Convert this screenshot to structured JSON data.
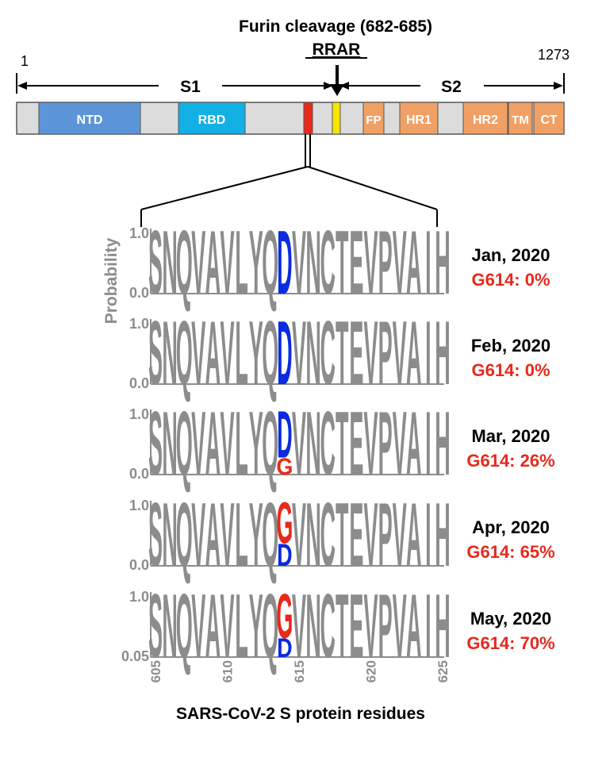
{
  "header": {
    "title": "Furin cleavage (682-685)",
    "motif": "RRAR",
    "start": "1",
    "end": "1273"
  },
  "protein_map": {
    "s1_label": "S1",
    "s2_label": "S2",
    "domains": [
      {
        "label": "NTD",
        "color": "#5b95d8"
      },
      {
        "label": "RBD",
        "color": "#13b0e6"
      },
      {
        "label": "FP",
        "color": "#f0a065"
      },
      {
        "label": "HR1",
        "color": "#f0a065"
      },
      {
        "label": "HR2",
        "color": "#f0a065"
      },
      {
        "label": "TM",
        "color": "#f0a065"
      },
      {
        "label": "CT",
        "color": "#f0a065"
      }
    ],
    "markers": [
      {
        "name": "D614 site",
        "color": "#e8291c"
      },
      {
        "name": "Furin site",
        "color": "#f5e500"
      }
    ]
  },
  "logo": {
    "y_axis_label": "Probability",
    "x_axis_label": "SARS-CoV-2 S protein residues",
    "residues": [
      "S",
      "N",
      "Q",
      "V",
      "A",
      "V",
      "L",
      "Y",
      "Q",
      "D",
      "V",
      "N",
      "C",
      "T",
      "E",
      "V",
      "P",
      "V",
      "A",
      "I",
      "H"
    ],
    "x_ticks": [
      "605",
      "610",
      "615",
      "620",
      "625"
    ],
    "colors": {
      "D": "#0a2be0",
      "G": "#e8291c",
      "other": "#8c8c8c"
    },
    "panels": [
      {
        "month": "Jan, 2020",
        "g614": "G614: 0%",
        "g_fraction": 0.0,
        "y_top": "1.0",
        "y_bottom": "0.0"
      },
      {
        "month": "Feb, 2020",
        "g614": "G614: 0%",
        "g_fraction": 0.0,
        "y_top": "1.0",
        "y_bottom": "0.0"
      },
      {
        "month": "Mar, 2020",
        "g614": "G614: 26%",
        "g_fraction": 0.26,
        "y_top": "1.0",
        "y_bottom": "0.0"
      },
      {
        "month": "Apr, 2020",
        "g614": "G614: 65%",
        "g_fraction": 0.65,
        "y_top": "1.0",
        "y_bottom": "0.0"
      },
      {
        "month": "May, 2020",
        "g614": "G614: 70%",
        "g_fraction": 0.7,
        "y_top": "1.0",
        "y_bottom": "0.05"
      }
    ]
  }
}
